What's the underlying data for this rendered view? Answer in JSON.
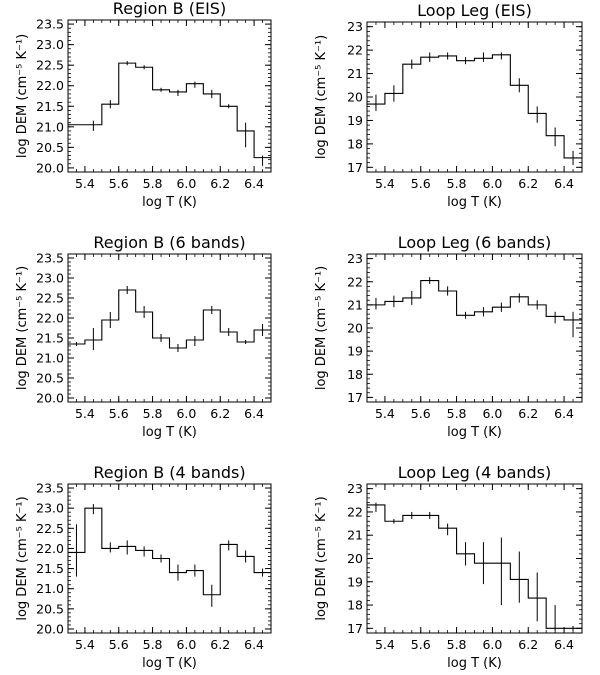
{
  "figure_name": "DEM reconstructions",
  "chart_data": [
    {
      "type": "line",
      "step": true,
      "title": "Region B (EIS)",
      "xlabel": "log T (K)",
      "ylabel": "log DEM (cm⁻⁵ K⁻¹)",
      "xlim": [
        5.3,
        6.5
      ],
      "ylim": [
        19.9,
        23.6
      ],
      "xticks": [
        5.4,
        5.6,
        5.8,
        6.0,
        6.2,
        6.4
      ],
      "yticks": [
        20.0,
        20.5,
        21.0,
        21.5,
        22.0,
        22.5,
        23.0,
        23.5
      ],
      "ytick_format": 1,
      "x": [
        5.35,
        5.45,
        5.55,
        5.65,
        5.75,
        5.85,
        5.95,
        6.05,
        6.15,
        6.25,
        6.35,
        6.45
      ],
      "values": [
        21.05,
        21.05,
        21.55,
        22.55,
        22.45,
        21.9,
        21.85,
        22.05,
        21.8,
        21.5,
        20.9,
        20.25
      ],
      "errors": [
        [
          21.05,
          21.05
        ],
        [
          20.9,
          21.15
        ],
        [
          21.45,
          21.65
        ],
        [
          22.5,
          22.6
        ],
        [
          22.4,
          22.5
        ],
        [
          21.85,
          21.95
        ],
        [
          21.75,
          21.9
        ],
        [
          21.95,
          22.1
        ],
        [
          21.7,
          21.9
        ],
        [
          21.45,
          21.55
        ],
        [
          20.5,
          21.1
        ],
        [
          20.05,
          20.3
        ]
      ]
    },
    {
      "type": "line",
      "step": true,
      "title": "Loop Leg (EIS)",
      "xlabel": "log T (K)",
      "ylabel": "log DEM (cm⁻⁵ K⁻¹)",
      "xlim": [
        5.3,
        6.5
      ],
      "ylim": [
        16.8,
        23.2
      ],
      "xticks": [
        5.4,
        5.6,
        5.8,
        6.0,
        6.2,
        6.4
      ],
      "yticks": [
        17,
        18,
        19,
        20,
        21,
        22,
        23
      ],
      "ytick_format": 0,
      "x": [
        5.35,
        5.45,
        5.55,
        5.65,
        5.75,
        5.85,
        5.95,
        6.05,
        6.15,
        6.25,
        6.35,
        6.45
      ],
      "values": [
        19.7,
        20.15,
        21.4,
        21.7,
        21.75,
        21.55,
        21.65,
        21.8,
        20.5,
        19.3,
        18.35,
        17.4
      ],
      "errors": [
        [
          19.4,
          20.1
        ],
        [
          19.8,
          20.5
        ],
        [
          21.2,
          21.6
        ],
        [
          21.5,
          21.9
        ],
        [
          21.6,
          21.9
        ],
        [
          21.4,
          21.7
        ],
        [
          21.5,
          21.9
        ],
        [
          21.6,
          21.9
        ],
        [
          20.2,
          20.8
        ],
        [
          18.9,
          19.6
        ],
        [
          17.9,
          18.7
        ],
        [
          17.1,
          17.7
        ]
      ]
    },
    {
      "type": "line",
      "step": true,
      "title": "Region B (6 bands)",
      "xlabel": "log T (K)",
      "ylabel": "log DEM (cm⁻⁵ K⁻¹)",
      "xlim": [
        5.3,
        6.5
      ],
      "ylim": [
        19.9,
        23.6
      ],
      "xticks": [
        5.4,
        5.6,
        5.8,
        6.0,
        6.2,
        6.4
      ],
      "yticks": [
        20.0,
        20.5,
        21.0,
        21.5,
        22.0,
        22.5,
        23.0,
        23.5
      ],
      "ytick_format": 1,
      "x": [
        5.35,
        5.45,
        5.55,
        5.65,
        5.75,
        5.85,
        5.95,
        6.05,
        6.15,
        6.25,
        6.35,
        6.45
      ],
      "values": [
        21.35,
        21.45,
        21.95,
        22.7,
        22.15,
        21.5,
        21.25,
        21.45,
        22.2,
        21.65,
        21.4,
        21.7
      ],
      "errors": [
        [
          21.3,
          21.4
        ],
        [
          21.2,
          21.75
        ],
        [
          21.75,
          22.15
        ],
        [
          22.6,
          22.8
        ],
        [
          22.0,
          22.3
        ],
        [
          21.4,
          21.6
        ],
        [
          21.15,
          21.35
        ],
        [
          21.3,
          21.55
        ],
        [
          22.1,
          22.3
        ],
        [
          21.55,
          21.75
        ],
        [
          21.35,
          21.45
        ],
        [
          21.55,
          21.85
        ]
      ]
    },
    {
      "type": "line",
      "step": true,
      "title": "Loop Leg (6 bands)",
      "xlabel": "log T (K)",
      "ylabel": "log DEM (cm⁻⁵ K⁻¹)",
      "xlim": [
        5.3,
        6.5
      ],
      "ylim": [
        16.8,
        23.2
      ],
      "xticks": [
        5.4,
        5.6,
        5.8,
        6.0,
        6.2,
        6.4
      ],
      "yticks": [
        17,
        18,
        19,
        20,
        21,
        22,
        23
      ],
      "ytick_format": 0,
      "x": [
        5.35,
        5.45,
        5.55,
        5.65,
        5.75,
        5.85,
        5.95,
        6.05,
        6.15,
        6.25,
        6.35,
        6.45
      ],
      "values": [
        21.0,
        21.15,
        21.3,
        22.05,
        21.6,
        20.55,
        20.7,
        20.9,
        21.35,
        21.0,
        20.5,
        20.35
      ],
      "errors": [
        [
          20.8,
          21.3
        ],
        [
          20.9,
          21.4
        ],
        [
          21.0,
          21.6
        ],
        [
          21.9,
          22.2
        ],
        [
          21.4,
          21.8
        ],
        [
          20.4,
          20.7
        ],
        [
          20.5,
          20.9
        ],
        [
          20.7,
          21.1
        ],
        [
          21.1,
          21.5
        ],
        [
          20.8,
          21.2
        ],
        [
          20.2,
          20.7
        ],
        [
          19.6,
          20.7
        ]
      ]
    },
    {
      "type": "line",
      "step": true,
      "title": "Region B (4 bands)",
      "xlabel": "log T (K)",
      "ylabel": "log DEM (cm⁻⁵ K⁻¹)",
      "xlim": [
        5.3,
        6.5
      ],
      "ylim": [
        19.9,
        23.6
      ],
      "xticks": [
        5.4,
        5.6,
        5.8,
        6.0,
        6.2,
        6.4
      ],
      "yticks": [
        20.0,
        20.5,
        21.0,
        21.5,
        22.0,
        22.5,
        23.0,
        23.5
      ],
      "ytick_format": 1,
      "x": [
        5.35,
        5.45,
        5.55,
        5.65,
        5.75,
        5.85,
        5.95,
        6.05,
        6.15,
        6.25,
        6.35,
        6.45
      ],
      "values": [
        21.9,
        23.0,
        22.0,
        22.05,
        21.95,
        21.75,
        21.4,
        21.45,
        20.85,
        22.1,
        21.8,
        21.4
      ],
      "errors": [
        [
          21.3,
          22.6
        ],
        [
          22.85,
          23.1
        ],
        [
          21.9,
          22.15
        ],
        [
          21.85,
          22.2
        ],
        [
          21.8,
          22.05
        ],
        [
          21.65,
          21.85
        ],
        [
          21.2,
          21.6
        ],
        [
          21.3,
          21.6
        ],
        [
          20.55,
          21.1
        ],
        [
          21.95,
          22.2
        ],
        [
          21.65,
          21.95
        ],
        [
          21.3,
          21.5
        ]
      ]
    },
    {
      "type": "line",
      "step": true,
      "title": "Loop Leg (4 bands)",
      "xlabel": "log T (K)",
      "ylabel": "log DEM (cm⁻⁵ K⁻¹)",
      "xlim": [
        5.3,
        6.5
      ],
      "ylim": [
        16.8,
        23.2
      ],
      "xticks": [
        5.4,
        5.6,
        5.8,
        6.0,
        6.2,
        6.4
      ],
      "yticks": [
        17,
        18,
        19,
        20,
        21,
        22,
        23
      ],
      "ytick_format": 0,
      "x": [
        5.35,
        5.45,
        5.55,
        5.65,
        5.75,
        5.85,
        5.95,
        6.05,
        6.15,
        6.25,
        6.35,
        6.45
      ],
      "values": [
        22.3,
        21.6,
        21.85,
        21.85,
        21.3,
        20.2,
        19.8,
        19.8,
        19.1,
        18.3,
        17.0,
        17.0
      ],
      "errors": [
        [
          22.0,
          22.4
        ],
        [
          21.5,
          21.7
        ],
        [
          21.7,
          22.0
        ],
        [
          21.7,
          22.0
        ],
        [
          21.0,
          21.5
        ],
        [
          19.7,
          20.7
        ],
        [
          18.9,
          20.7
        ],
        [
          18.0,
          20.9
        ],
        [
          18.1,
          20.3
        ],
        [
          17.3,
          19.4
        ],
        [
          16.9,
          18.0
        ],
        [
          16.9,
          17.1
        ]
      ]
    }
  ]
}
